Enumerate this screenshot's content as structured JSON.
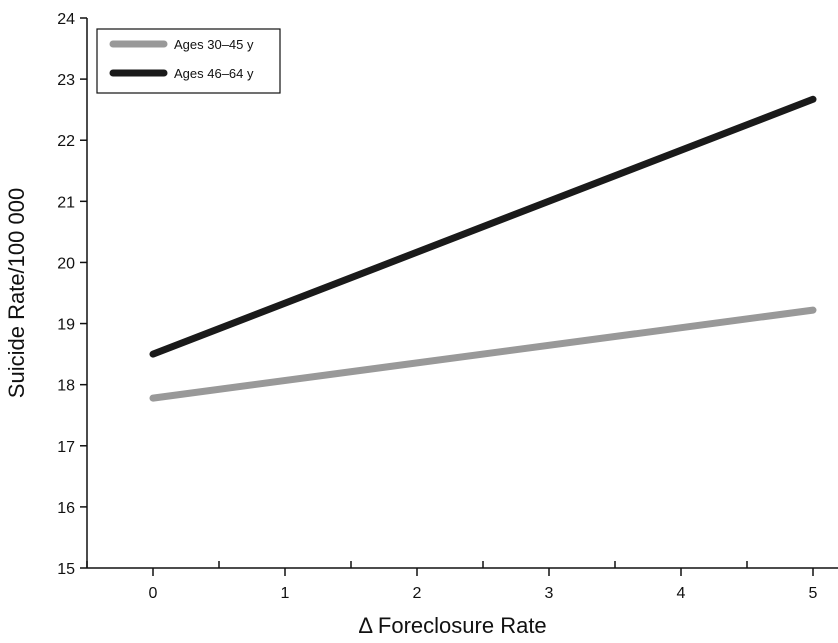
{
  "chart_data": {
    "type": "line",
    "title": "",
    "xlabel": "Δ Foreclosure Rate",
    "ylabel": "Suicide Rate/100 000",
    "x": [
      0,
      5
    ],
    "xlim": [
      -0.5,
      5.25
    ],
    "ylim": [
      15,
      24
    ],
    "xticks": [
      0,
      1,
      2,
      3,
      4,
      5
    ],
    "yticks": [
      15,
      16,
      17,
      18,
      19,
      20,
      21,
      22,
      23,
      24
    ],
    "xtick_labels": [
      "0",
      "1",
      "2",
      "3",
      "4",
      "5"
    ],
    "ytick_labels": [
      "15",
      "16",
      "17",
      "18",
      "19",
      "20",
      "21",
      "22",
      "23",
      "24"
    ],
    "legend_position": "top-left",
    "grid": false,
    "series": [
      {
        "name": "Ages 30–45 y",
        "color": "#999999",
        "x": [
          0,
          5
        ],
        "values": [
          17.78,
          19.22
        ]
      },
      {
        "name": "Ages 46–64 y",
        "color": "#1a1a1a",
        "x": [
          0,
          5
        ],
        "values": [
          18.5,
          22.67
        ]
      }
    ]
  }
}
